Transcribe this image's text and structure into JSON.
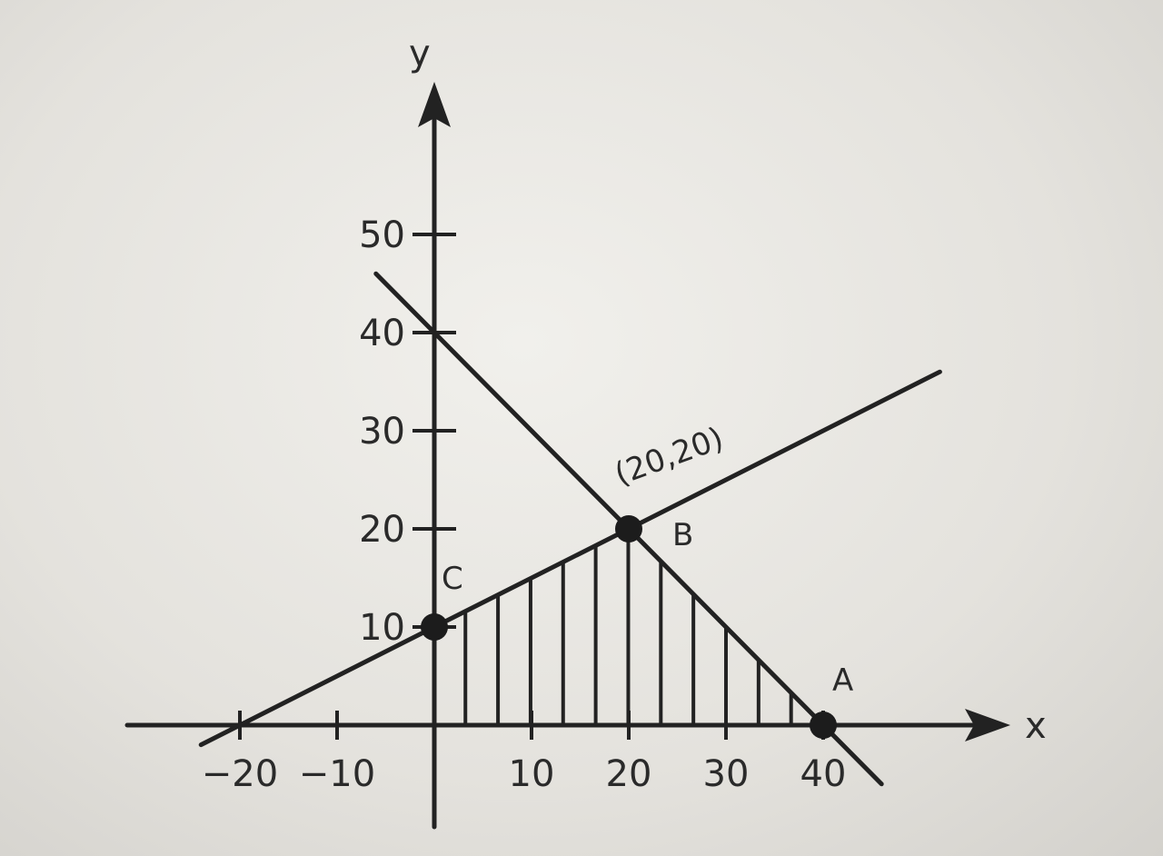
{
  "chart_data": {
    "type": "line",
    "title": "",
    "xlabel": "x",
    "ylabel": "y",
    "xlim": [
      -25,
      50
    ],
    "ylim": [
      -10,
      65
    ],
    "x_ticks": [
      {
        "value": -20,
        "label": "−20"
      },
      {
        "value": -10,
        "label": "−10"
      },
      {
        "value": 10,
        "label": "10"
      },
      {
        "value": 20,
        "label": "20"
      },
      {
        "value": 30,
        "label": "30"
      },
      {
        "value": 40,
        "label": "40"
      }
    ],
    "y_ticks": [
      {
        "value": 10,
        "label": "10"
      },
      {
        "value": 20,
        "label": "20"
      },
      {
        "value": 30,
        "label": "30"
      },
      {
        "value": 40,
        "label": "40"
      },
      {
        "value": 50,
        "label": "50"
      }
    ],
    "lines": [
      {
        "x": [
          -6,
          46
        ],
        "y": [
          46,
          -6
        ]
      },
      {
        "x": [
          -24,
          52
        ],
        "y": [
          -2,
          36
        ]
      }
    ],
    "feasible_region": {
      "vertices": [
        [
          0,
          0
        ],
        [
          0,
          10
        ],
        [
          20,
          20
        ],
        [
          40,
          0
        ]
      ],
      "fill": "vertical-hatch"
    },
    "points": [
      {
        "label": "A",
        "x": 40,
        "y": 0
      },
      {
        "label": "B",
        "x": 20,
        "y": 20,
        "annotation": "(20,20)"
      },
      {
        "label": "C",
        "x": 0,
        "y": 10
      }
    ],
    "grid": false,
    "legend": "none"
  }
}
